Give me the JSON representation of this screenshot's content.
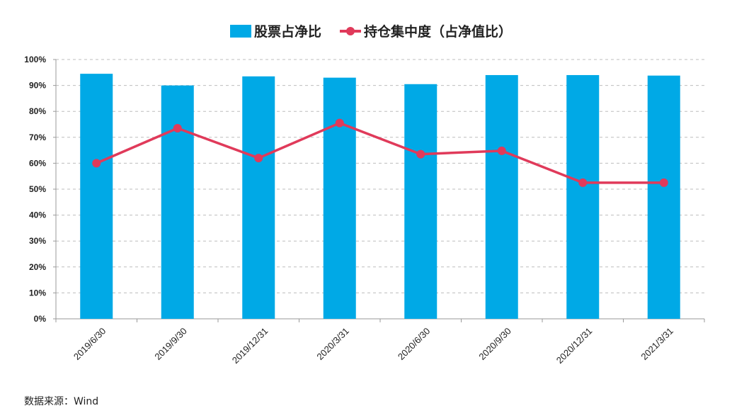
{
  "chart_data": {
    "type": "bar",
    "categories": [
      "2019/6/30",
      "2019/9/30",
      "2019/12/31",
      "2020/3/31",
      "2020/6/30",
      "2020/9/30",
      "2020/12/31",
      "2021/3/31"
    ],
    "series": [
      {
        "name": "股票占净比",
        "type": "bar",
        "color": "#00a9e6",
        "values": [
          94.5,
          90.0,
          93.5,
          93.0,
          90.5,
          94.0,
          94.0,
          93.8
        ]
      },
      {
        "name": "持仓集中度（占净值比）",
        "type": "line",
        "color": "#e03a5a",
        "values": [
          60.0,
          73.5,
          62.0,
          75.5,
          63.5,
          64.8,
          52.5,
          52.5
        ]
      }
    ],
    "y_ticks": [
      "0%",
      "10%",
      "20%",
      "30%",
      "40%",
      "50%",
      "60%",
      "70%",
      "80%",
      "90%",
      "100%"
    ],
    "ylim": [
      0,
      100
    ],
    "grid": "horizontal-dashed",
    "legend_position": "top-center",
    "title": "",
    "xlabel": "",
    "ylabel": ""
  },
  "footer": {
    "source": "数据来源：Wind"
  }
}
